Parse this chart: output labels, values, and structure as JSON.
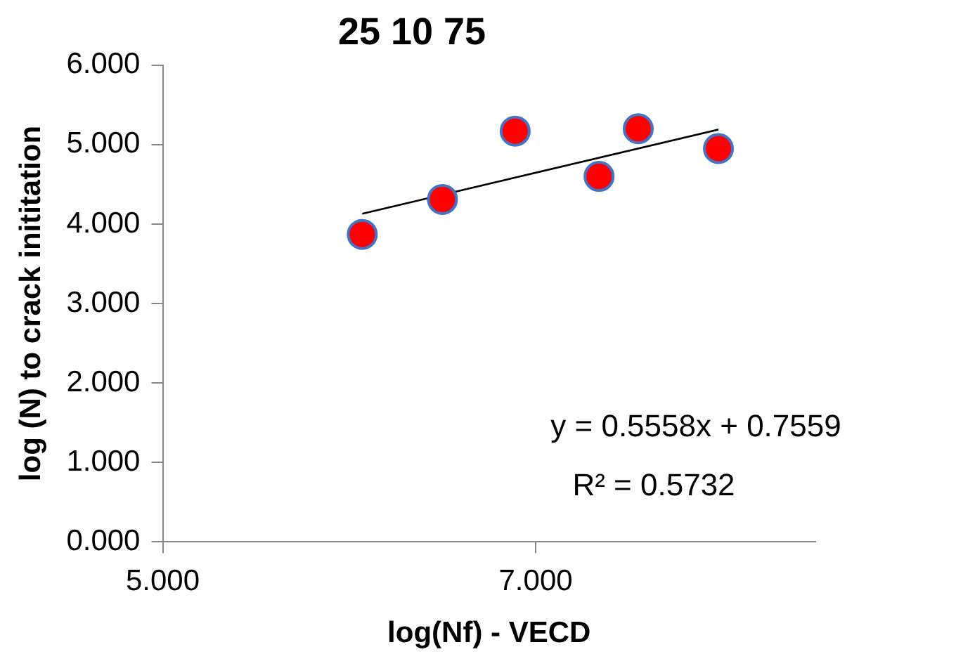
{
  "chart_data": {
    "type": "scatter",
    "title": "25 10 75",
    "xlabel": "log(Nf) - VECD",
    "ylabel": "log (N) to crack inititation",
    "series": [
      {
        "type": "scatter",
        "marker": "circle",
        "color": "#ff0000",
        "x": [
          6.07,
          6.5,
          6.89,
          7.34,
          7.55,
          7.98
        ],
        "values": [
          3.87,
          4.31,
          5.17,
          4.6,
          5.2,
          4.95
        ]
      },
      {
        "type": "line",
        "color": "#000000",
        "x": [
          6.07,
          7.98
        ],
        "values": [
          4.13,
          5.19
        ]
      }
    ],
    "annotations": [
      "y = 0.5558x + 0.7559",
      "R² = 0.5732"
    ],
    "xlim": [
      5,
      8.5
    ],
    "xticks": [
      {
        "value": 5,
        "label": "5.000"
      },
      {
        "value": 7,
        "label": "7.000"
      }
    ],
    "ylim": [
      0,
      6
    ],
    "yticks": [
      {
        "value": 0,
        "label": "0.000"
      },
      {
        "value": 1,
        "label": "1.000"
      },
      {
        "value": 2,
        "label": "2.000"
      },
      {
        "value": 3,
        "label": "3.000"
      },
      {
        "value": 4,
        "label": "4.000"
      },
      {
        "value": 5,
        "label": "5.000"
      },
      {
        "value": 6,
        "label": "6.000"
      }
    ],
    "grid": false,
    "legend": false
  }
}
